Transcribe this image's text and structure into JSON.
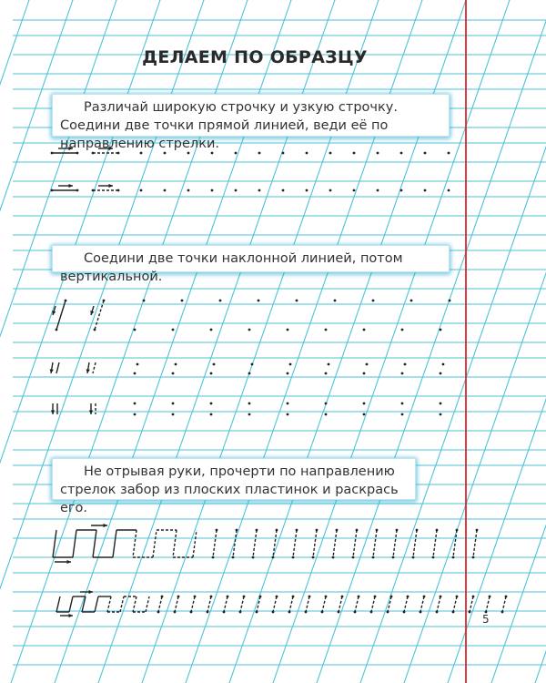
{
  "title": "ДЕЛАЕМ ПО ОБРАЗЦУ",
  "instructions": [
    "Различай широкую строчку и узкую строчку. Соедини две точки прямой линией, веди её по направлению стрелки.",
    "Соедини две точки наклонной линией, потом вертикальной.",
    "Не отрывая руки, прочерти по направлению стрелок забор из плоских пластинок и раскрась его."
  ],
  "page_number": "5",
  "colors": {
    "grid": "#4cc3d6",
    "margin_line": "#d62a2a",
    "ink": "#222222"
  }
}
